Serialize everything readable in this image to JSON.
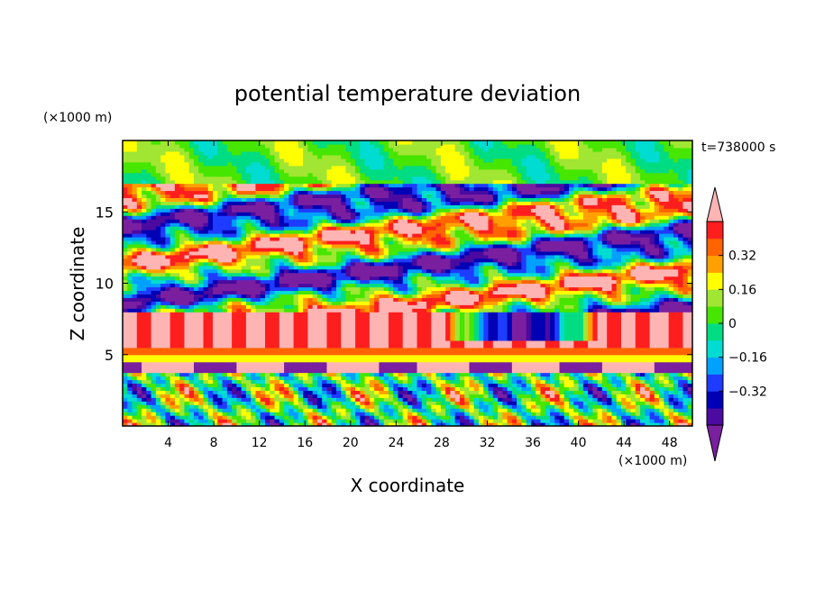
{
  "chart_data": {
    "type": "heatmap",
    "title": "potential temperature deviation",
    "xlabel": "X coordinate",
    "ylabel": "Z coordinate",
    "x_unit": "(×1000 m)",
    "y_unit": "(×1000 m)",
    "time_label": "t=738000 s",
    "xlim": [
      0,
      50
    ],
    "ylim": [
      0,
      20
    ],
    "x_ticks": [
      4,
      8,
      12,
      16,
      20,
      24,
      28,
      32,
      36,
      40,
      44,
      48
    ],
    "y_ticks": [
      5,
      10,
      15
    ],
    "colorbar": {
      "levels": [
        -0.48,
        -0.4,
        -0.32,
        -0.24,
        -0.16,
        -0.08,
        0,
        0.08,
        0.16,
        0.24,
        0.32,
        0.4,
        0.48
      ],
      "tick_values": [
        0.32,
        0.16,
        0,
        -0.16,
        -0.32
      ],
      "tick_labels": [
        "0.32",
        "0.16",
        "0",
        "−0.16",
        "−0.32"
      ],
      "colors": [
        "#7a1fa0",
        "#4b0aa0",
        "#0000b4",
        "#1e3cff",
        "#00a0ff",
        "#00dcd2",
        "#00dc82",
        "#46e600",
        "#a0e632",
        "#ffff00",
        "#ffa000",
        "#ff6400",
        "#ff1e1e",
        "#ffb4b4"
      ],
      "extend": "both"
    },
    "field_description_bands": [
      {
        "z_range": [
          17,
          20
        ],
        "mean": 0.05
      },
      {
        "z_range": [
          8,
          17
        ],
        "mean": 0.0
      },
      {
        "z_range": [
          5.5,
          8
        ],
        "mean": 0.5
      },
      {
        "z_range": [
          4.5,
          5.5
        ],
        "mean": 0.3
      },
      {
        "z_range": [
          0,
          4.5
        ],
        "mean": 0.0
      }
    ]
  }
}
